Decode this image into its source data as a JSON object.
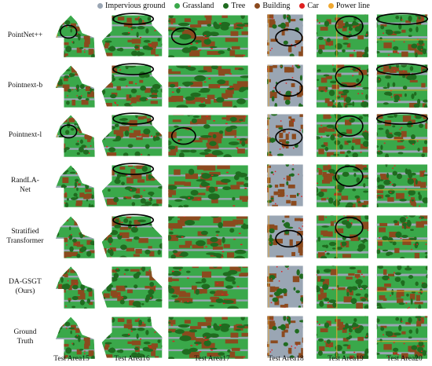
{
  "legend": [
    {
      "label": "Impervious ground",
      "color": "#9aa6b4"
    },
    {
      "label": "Grassland",
      "color": "#3aa84a"
    },
    {
      "label": "Tree",
      "color": "#1f6b1f"
    },
    {
      "label": "Building",
      "color": "#8b4a1e"
    },
    {
      "label": "Car",
      "color": "#e02020"
    },
    {
      "label": "Power line",
      "color": "#f0a830"
    }
  ],
  "rows": [
    {
      "label": "PointNet++"
    },
    {
      "label": "Pointnext-b"
    },
    {
      "label": "Pointnext-l"
    },
    {
      "label": "RandLA-\nNet"
    },
    {
      "label": "Stratified\nTransformer"
    },
    {
      "label": "DA-GSGT\n(Ours)"
    },
    {
      "label": "Ground\nTruth"
    }
  ],
  "columns": [
    {
      "label": "Test Area15"
    },
    {
      "label": "Test Area16"
    },
    {
      "label": "Test Area17"
    },
    {
      "label": "Test Area18"
    },
    {
      "label": "Test Area19"
    },
    {
      "label": "Test Area20"
    }
  ],
  "colors": {
    "impervious": "#9aa6b4",
    "grass": "#3aa84a",
    "tree": "#1f6b1f",
    "building": "#8b4a1e",
    "car": "#e02020",
    "powerline": "#f0a830",
    "circle": "#000000"
  }
}
